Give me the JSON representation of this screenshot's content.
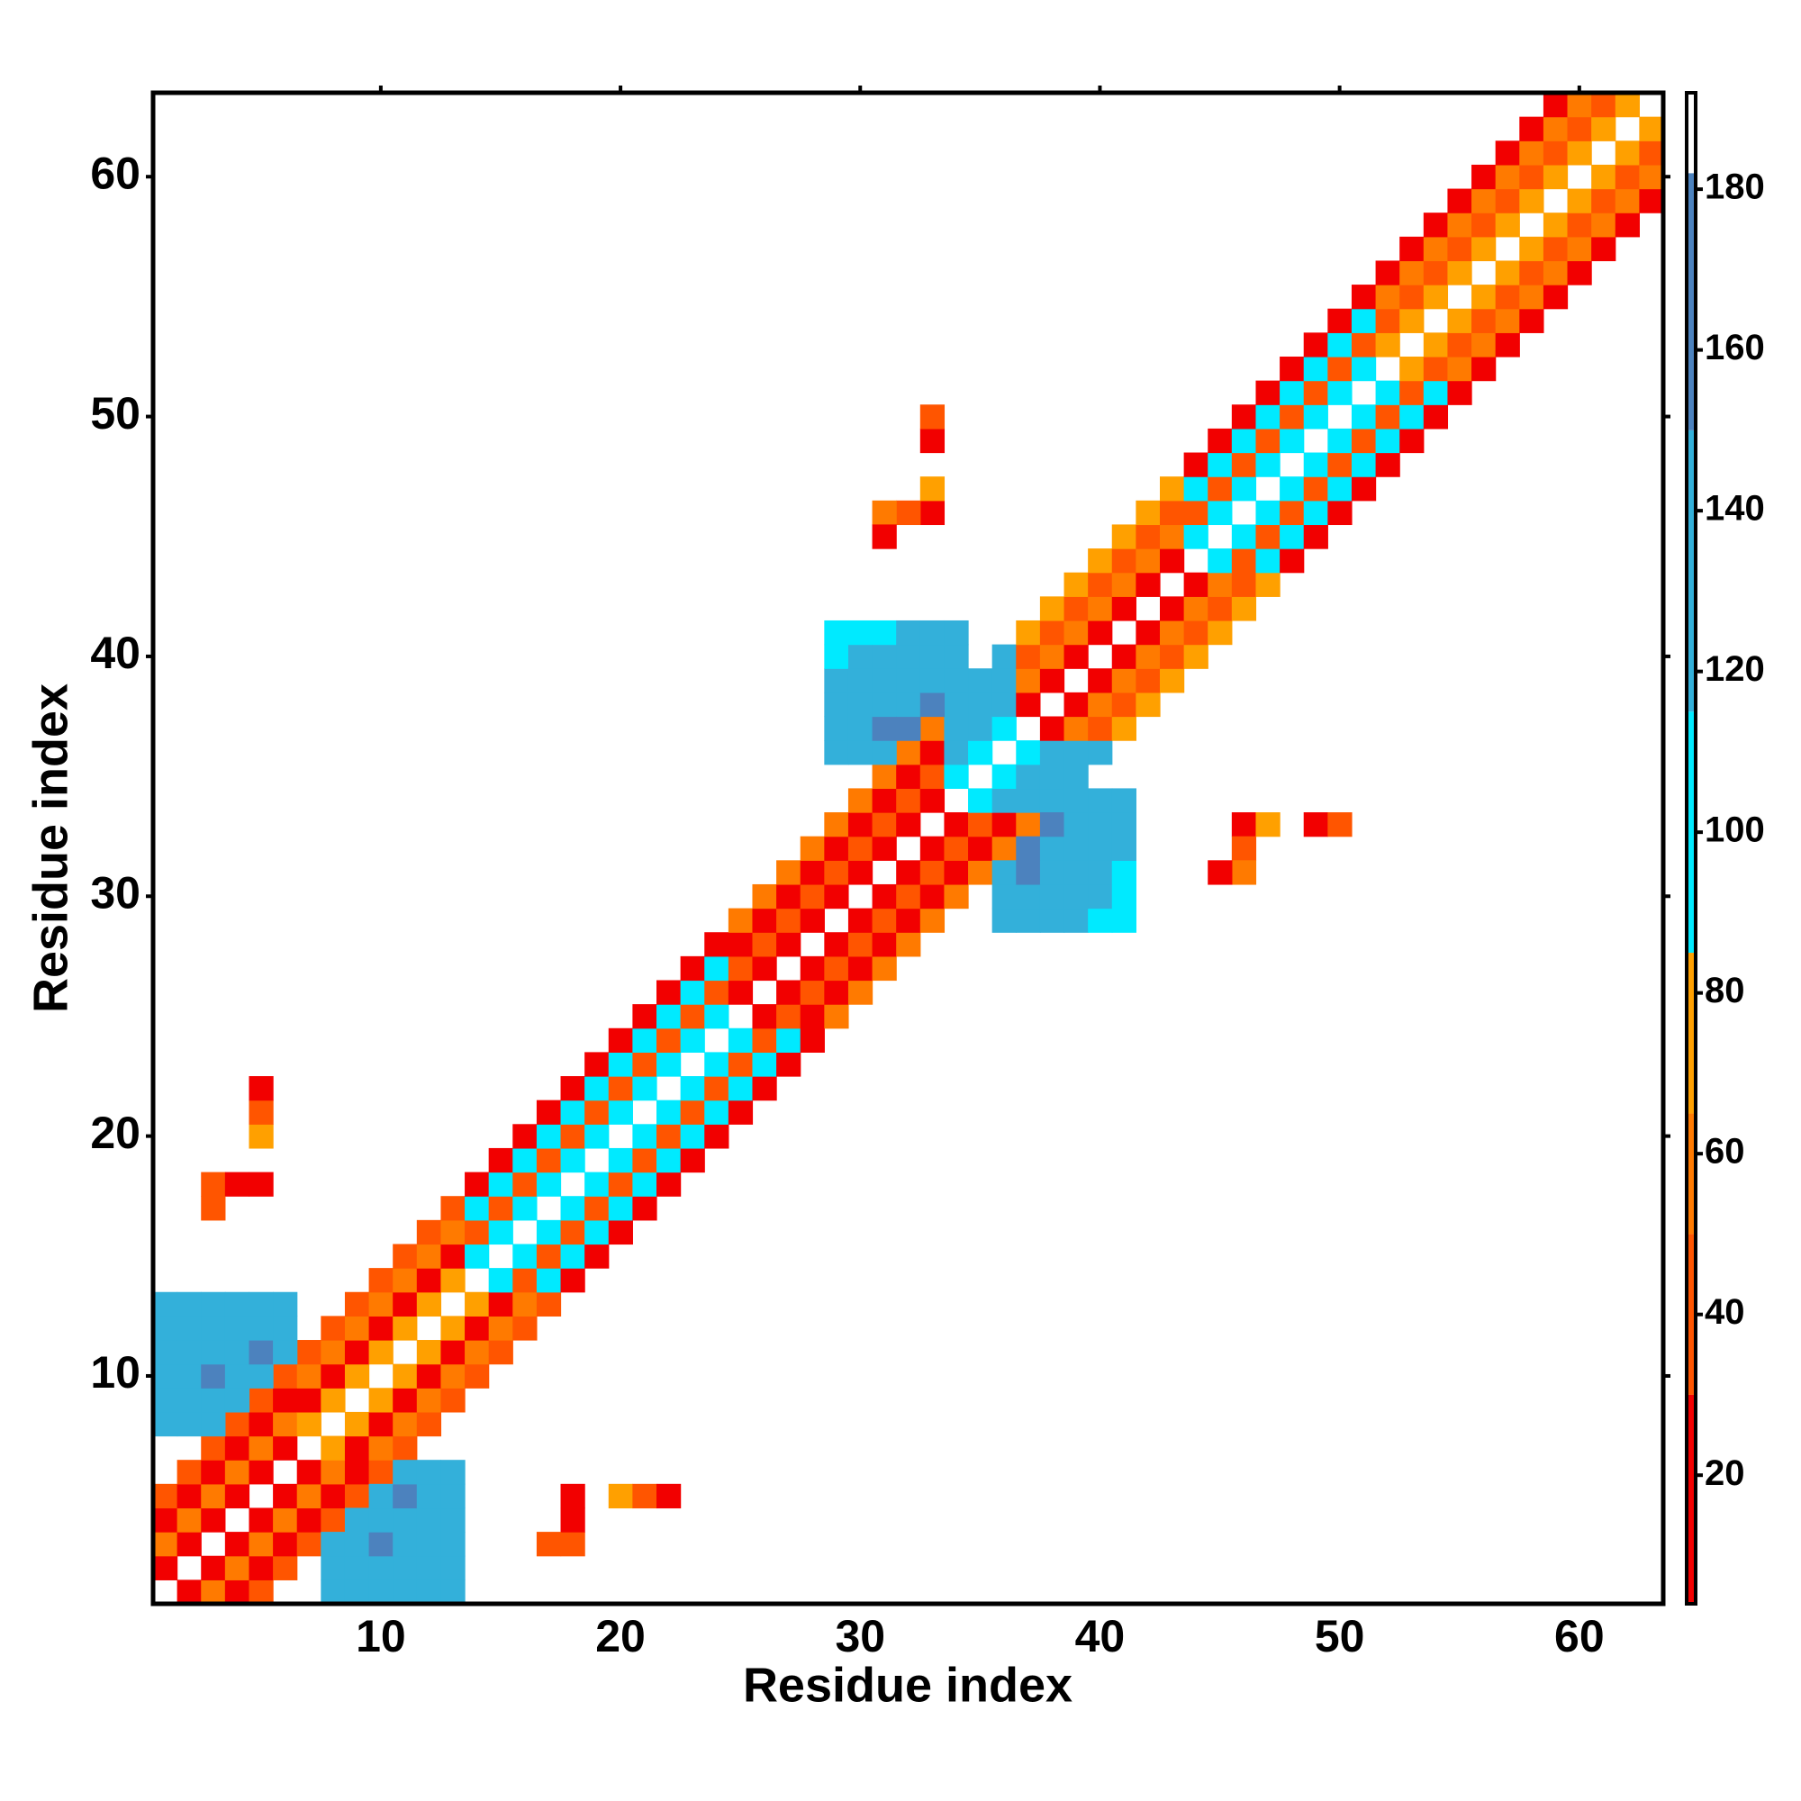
{
  "chart_data": {
    "type": "heatmap",
    "symmetric": true,
    "x_label": "Residue index",
    "y_label": "Residue index",
    "xlim": [
      0.5,
      63.5
    ],
    "ylim": [
      0.5,
      63.5
    ],
    "xticks": [
      10,
      20,
      30,
      40,
      50,
      60
    ],
    "yticks": [
      10,
      20,
      30,
      40,
      50,
      60
    ],
    "colorbar_lim": [
      4,
      192
    ],
    "colorbar_ticks": [
      20,
      40,
      60,
      80,
      100,
      120,
      140,
      160,
      180
    ],
    "colorscale": [
      [
        30,
        "#f20000"
      ],
      [
        50,
        "#ff5500"
      ],
      [
        65,
        "#ff7a00"
      ],
      [
        85,
        "#ffa000"
      ],
      [
        115,
        "#00eaff"
      ],
      [
        150,
        "#33b0da"
      ],
      [
        182,
        "#4c82be"
      ],
      [
        192,
        "#ffffff"
      ]
    ],
    "cells": [
      [
        1,
        2,
        15
      ],
      [
        1,
        3,
        55
      ],
      [
        1,
        4,
        20
      ],
      [
        1,
        5,
        45
      ],
      [
        2,
        3,
        15
      ],
      [
        2,
        4,
        55
      ],
      [
        2,
        5,
        20
      ],
      [
        2,
        6,
        45
      ],
      [
        3,
        4,
        15
      ],
      [
        3,
        5,
        55
      ],
      [
        3,
        6,
        20
      ],
      [
        3,
        7,
        45
      ],
      [
        4,
        5,
        15
      ],
      [
        4,
        6,
        55
      ],
      [
        4,
        7,
        20
      ],
      [
        4,
        8,
        45
      ],
      [
        5,
        6,
        15
      ],
      [
        5,
        7,
        55
      ],
      [
        5,
        8,
        20
      ],
      [
        5,
        9,
        45
      ],
      [
        6,
        7,
        15
      ],
      [
        6,
        8,
        55
      ],
      [
        6,
        9,
        20
      ],
      [
        6,
        10,
        45
      ],
      [
        7,
        8,
        70
      ],
      [
        7,
        9,
        25
      ],
      [
        7,
        10,
        55
      ],
      [
        7,
        11,
        40
      ],
      [
        8,
        9,
        70
      ],
      [
        8,
        10,
        25
      ],
      [
        8,
        11,
        55
      ],
      [
        8,
        12,
        40
      ],
      [
        9,
        10,
        70
      ],
      [
        9,
        11,
        25
      ],
      [
        9,
        12,
        55
      ],
      [
        9,
        13,
        40
      ],
      [
        10,
        11,
        70
      ],
      [
        10,
        12,
        25
      ],
      [
        10,
        13,
        55
      ],
      [
        10,
        14,
        40
      ],
      [
        11,
        12,
        70
      ],
      [
        11,
        13,
        25
      ],
      [
        11,
        14,
        55
      ],
      [
        11,
        15,
        40
      ],
      [
        12,
        13,
        70
      ],
      [
        12,
        14,
        25
      ],
      [
        12,
        15,
        55
      ],
      [
        12,
        16,
        40
      ],
      [
        13,
        14,
        70
      ],
      [
        13,
        15,
        25
      ],
      [
        13,
        16,
        55
      ],
      [
        13,
        17,
        40
      ],
      [
        14,
        15,
        100
      ],
      [
        14,
        16,
        50
      ],
      [
        14,
        17,
        110
      ],
      [
        14,
        18,
        30
      ],
      [
        15,
        16,
        100
      ],
      [
        15,
        17,
        50
      ],
      [
        15,
        18,
        110
      ],
      [
        15,
        19,
        30
      ],
      [
        16,
        17,
        100
      ],
      [
        16,
        18,
        50
      ],
      [
        16,
        19,
        110
      ],
      [
        16,
        20,
        30
      ],
      [
        17,
        18,
        100
      ],
      [
        17,
        19,
        50
      ],
      [
        17,
        20,
        110
      ],
      [
        17,
        21,
        30
      ],
      [
        18,
        19,
        100
      ],
      [
        18,
        20,
        50
      ],
      [
        18,
        21,
        110
      ],
      [
        18,
        22,
        30
      ],
      [
        19,
        20,
        100
      ],
      [
        19,
        21,
        50
      ],
      [
        19,
        22,
        110
      ],
      [
        19,
        23,
        30
      ],
      [
        20,
        21,
        100
      ],
      [
        20,
        22,
        50
      ],
      [
        20,
        23,
        110
      ],
      [
        20,
        24,
        30
      ],
      [
        21,
        22,
        100
      ],
      [
        21,
        23,
        50
      ],
      [
        21,
        24,
        110
      ],
      [
        21,
        25,
        30
      ],
      [
        22,
        23,
        100
      ],
      [
        22,
        24,
        50
      ],
      [
        22,
        25,
        110
      ],
      [
        22,
        26,
        30
      ],
      [
        23,
        24,
        100
      ],
      [
        23,
        25,
        50
      ],
      [
        23,
        26,
        110
      ],
      [
        23,
        27,
        30
      ],
      [
        24,
        25,
        100
      ],
      [
        24,
        26,
        50
      ],
      [
        24,
        27,
        110
      ],
      [
        24,
        28,
        30
      ],
      [
        25,
        26,
        25
      ],
      [
        25,
        27,
        50
      ],
      [
        25,
        28,
        20
      ],
      [
        25,
        29,
        60
      ],
      [
        26,
        27,
        25
      ],
      [
        26,
        28,
        50
      ],
      [
        26,
        29,
        20
      ],
      [
        26,
        30,
        60
      ],
      [
        27,
        28,
        25
      ],
      [
        27,
        29,
        50
      ],
      [
        27,
        30,
        20
      ],
      [
        27,
        31,
        60
      ],
      [
        28,
        29,
        25
      ],
      [
        28,
        30,
        50
      ],
      [
        28,
        31,
        20
      ],
      [
        28,
        32,
        60
      ],
      [
        29,
        30,
        25
      ],
      [
        29,
        31,
        50
      ],
      [
        29,
        32,
        20
      ],
      [
        29,
        33,
        60
      ],
      [
        30,
        31,
        25
      ],
      [
        30,
        32,
        50
      ],
      [
        30,
        33,
        20
      ],
      [
        30,
        34,
        60
      ],
      [
        31,
        32,
        25
      ],
      [
        31,
        33,
        50
      ],
      [
        31,
        34,
        20
      ],
      [
        31,
        35,
        60
      ],
      [
        32,
        33,
        25
      ],
      [
        32,
        34,
        50
      ],
      [
        32,
        35,
        20
      ],
      [
        32,
        36,
        60
      ],
      [
        33,
        34,
        25
      ],
      [
        33,
        35,
        50
      ],
      [
        33,
        36,
        20
      ],
      [
        33,
        37,
        60
      ],
      [
        34,
        35,
        100
      ],
      [
        34,
        36,
        130
      ],
      [
        34,
        37,
        140
      ],
      [
        34,
        38,
        120
      ],
      [
        35,
        36,
        100
      ],
      [
        35,
        37,
        130
      ],
      [
        35,
        38,
        140
      ],
      [
        35,
        39,
        120
      ],
      [
        36,
        37,
        100
      ],
      [
        36,
        38,
        130
      ],
      [
        36,
        39,
        140
      ],
      [
        36,
        40,
        120
      ],
      [
        37,
        38,
        20
      ],
      [
        37,
        39,
        55
      ],
      [
        37,
        40,
        35
      ],
      [
        37,
        41,
        75
      ],
      [
        38,
        39,
        20
      ],
      [
        38,
        40,
        55
      ],
      [
        38,
        41,
        35
      ],
      [
        38,
        42,
        75
      ],
      [
        39,
        40,
        20
      ],
      [
        39,
        41,
        55
      ],
      [
        39,
        42,
        35
      ],
      [
        39,
        43,
        75
      ],
      [
        40,
        41,
        20
      ],
      [
        40,
        42,
        55
      ],
      [
        40,
        43,
        35
      ],
      [
        40,
        44,
        75
      ],
      [
        41,
        42,
        20
      ],
      [
        41,
        43,
        55
      ],
      [
        41,
        44,
        35
      ],
      [
        41,
        45,
        75
      ],
      [
        42,
        43,
        20
      ],
      [
        42,
        44,
        55
      ],
      [
        42,
        45,
        35
      ],
      [
        42,
        46,
        75
      ],
      [
        43,
        44,
        20
      ],
      [
        43,
        45,
        55
      ],
      [
        43,
        46,
        35
      ],
      [
        43,
        47,
        75
      ],
      [
        44,
        45,
        100
      ],
      [
        44,
        46,
        50
      ],
      [
        44,
        47,
        110
      ],
      [
        44,
        48,
        30
      ],
      [
        45,
        46,
        100
      ],
      [
        45,
        47,
        50
      ],
      [
        45,
        48,
        110
      ],
      [
        45,
        49,
        30
      ],
      [
        46,
        47,
        100
      ],
      [
        46,
        48,
        50
      ],
      [
        46,
        49,
        110
      ],
      [
        46,
        50,
        30
      ],
      [
        47,
        48,
        100
      ],
      [
        47,
        49,
        50
      ],
      [
        47,
        50,
        110
      ],
      [
        47,
        51,
        30
      ],
      [
        48,
        49,
        100
      ],
      [
        48,
        50,
        50
      ],
      [
        48,
        51,
        110
      ],
      [
        48,
        52,
        30
      ],
      [
        49,
        50,
        100
      ],
      [
        49,
        51,
        50
      ],
      [
        49,
        52,
        110
      ],
      [
        49,
        53,
        30
      ],
      [
        50,
        51,
        100
      ],
      [
        50,
        52,
        50
      ],
      [
        50,
        53,
        110
      ],
      [
        50,
        54,
        30
      ],
      [
        51,
        52,
        100
      ],
      [
        51,
        53,
        50
      ],
      [
        51,
        54,
        110
      ],
      [
        51,
        55,
        30
      ],
      [
        52,
        53,
        75
      ],
      [
        52,
        54,
        40
      ],
      [
        52,
        55,
        60
      ],
      [
        52,
        56,
        20
      ],
      [
        53,
        54,
        75
      ],
      [
        53,
        55,
        40
      ],
      [
        53,
        56,
        60
      ],
      [
        53,
        57,
        20
      ],
      [
        54,
        55,
        75
      ],
      [
        54,
        56,
        40
      ],
      [
        54,
        57,
        60
      ],
      [
        54,
        58,
        20
      ],
      [
        55,
        56,
        75
      ],
      [
        55,
        57,
        40
      ],
      [
        55,
        58,
        60
      ],
      [
        55,
        59,
        20
      ],
      [
        56,
        57,
        75
      ],
      [
        56,
        58,
        40
      ],
      [
        56,
        59,
        60
      ],
      [
        56,
        60,
        20
      ],
      [
        57,
        58,
        75
      ],
      [
        57,
        59,
        40
      ],
      [
        57,
        60,
        60
      ],
      [
        57,
        61,
        20
      ],
      [
        58,
        59,
        75
      ],
      [
        58,
        60,
        40
      ],
      [
        58,
        61,
        60
      ],
      [
        58,
        62,
        20
      ],
      [
        59,
        60,
        75
      ],
      [
        59,
        61,
        40
      ],
      [
        59,
        62,
        60
      ],
      [
        59,
        63,
        20
      ],
      [
        60,
        61,
        75
      ],
      [
        60,
        62,
        40
      ],
      [
        60,
        63,
        60
      ],
      [
        61,
        62,
        75
      ],
      [
        61,
        63,
        40
      ],
      [
        62,
        63,
        75
      ],
      [
        1,
        8,
        130
      ],
      [
        1,
        9,
        130
      ],
      [
        1,
        10,
        130
      ],
      [
        1,
        11,
        130
      ],
      [
        1,
        12,
        130
      ],
      [
        1,
        13,
        130
      ],
      [
        2,
        8,
        130
      ],
      [
        2,
        9,
        130
      ],
      [
        2,
        10,
        130
      ],
      [
        2,
        11,
        130
      ],
      [
        2,
        12,
        130
      ],
      [
        2,
        13,
        130
      ],
      [
        3,
        8,
        130
      ],
      [
        3,
        9,
        130
      ],
      [
        3,
        10,
        160
      ],
      [
        3,
        11,
        130
      ],
      [
        3,
        12,
        130
      ],
      [
        3,
        13,
        130
      ],
      [
        4,
        9,
        130
      ],
      [
        4,
        10,
        130
      ],
      [
        4,
        11,
        130
      ],
      [
        4,
        12,
        130
      ],
      [
        4,
        13,
        130
      ],
      [
        5,
        10,
        130
      ],
      [
        5,
        11,
        160
      ],
      [
        5,
        12,
        130
      ],
      [
        5,
        13,
        130
      ],
      [
        6,
        11,
        130
      ],
      [
        6,
        12,
        130
      ],
      [
        6,
        13,
        130
      ],
      [
        29,
        36,
        130
      ],
      [
        29,
        37,
        130
      ],
      [
        29,
        38,
        130
      ],
      [
        29,
        39,
        130
      ],
      [
        29,
        40,
        110
      ],
      [
        29,
        41,
        110
      ],
      [
        30,
        36,
        130
      ],
      [
        30,
        37,
        130
      ],
      [
        30,
        38,
        130
      ],
      [
        30,
        39,
        130
      ],
      [
        30,
        40,
        130
      ],
      [
        30,
        41,
        110
      ],
      [
        31,
        36,
        130
      ],
      [
        31,
        37,
        160
      ],
      [
        31,
        38,
        130
      ],
      [
        31,
        39,
        130
      ],
      [
        31,
        40,
        130
      ],
      [
        31,
        41,
        110
      ],
      [
        32,
        37,
        160
      ],
      [
        32,
        38,
        130
      ],
      [
        32,
        39,
        130
      ],
      [
        32,
        40,
        130
      ],
      [
        32,
        41,
        130
      ],
      [
        33,
        38,
        160
      ],
      [
        33,
        39,
        130
      ],
      [
        33,
        40,
        130
      ],
      [
        33,
        41,
        130
      ],
      [
        34,
        39,
        130
      ],
      [
        34,
        40,
        130
      ],
      [
        34,
        41,
        130
      ],
      [
        5,
        20,
        70
      ],
      [
        5,
        21,
        45
      ],
      [
        5,
        22,
        20
      ],
      [
        3,
        18,
        45
      ],
      [
        4,
        18,
        20
      ],
      [
        5,
        18,
        15
      ],
      [
        3,
        17,
        45
      ],
      [
        33,
        46,
        15
      ],
      [
        32,
        46,
        45
      ],
      [
        31,
        46,
        55
      ],
      [
        31,
        45,
        20
      ],
      [
        33,
        47,
        70
      ],
      [
        33,
        49,
        20
      ],
      [
        33,
        50,
        45
      ]
    ]
  }
}
